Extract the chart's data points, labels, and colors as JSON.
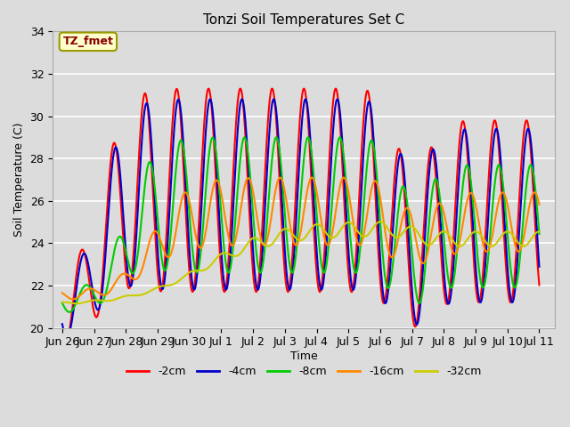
{
  "title": "Tonzi Soil Temperatures Set C",
  "xlabel": "Time",
  "ylabel": "Soil Temperature (C)",
  "ylim": [
    20,
    34
  ],
  "background_color": "#dcdcdc",
  "plot_bg_color": "#dcdcdc",
  "grid_color": "#ffffff",
  "annotation_text": "TZ_fmet",
  "annotation_bg": "#ffffcc",
  "annotation_border": "#999900",
  "annotation_text_color": "#880000",
  "series": [
    {
      "label": "-2cm",
      "color": "#ff0000",
      "lw": 1.5
    },
    {
      "label": "-4cm",
      "color": "#0000cc",
      "lw": 1.5
    },
    {
      "label": "-8cm",
      "color": "#00cc00",
      "lw": 1.5
    },
    {
      "label": "-16cm",
      "color": "#ff8800",
      "lw": 1.5
    },
    {
      "label": "-32cm",
      "color": "#cccc00",
      "lw": 1.5
    }
  ],
  "xtick_labels": [
    "Jun 26",
    "Jun 27",
    "Jun 28",
    "Jun 29",
    "Jun 30",
    "Jul 1",
    "Jul 2",
    "Jul 3",
    "Jul 4",
    "Jul 5",
    "Jul 6",
    "Jul 7",
    "Jul 8",
    "Jul 9",
    "Jul 10",
    "Jul 11"
  ],
  "xtick_positions": [
    0,
    1,
    2,
    3,
    4,
    5,
    6,
    7,
    8,
    9,
    10,
    11,
    12,
    13,
    14,
    15
  ]
}
